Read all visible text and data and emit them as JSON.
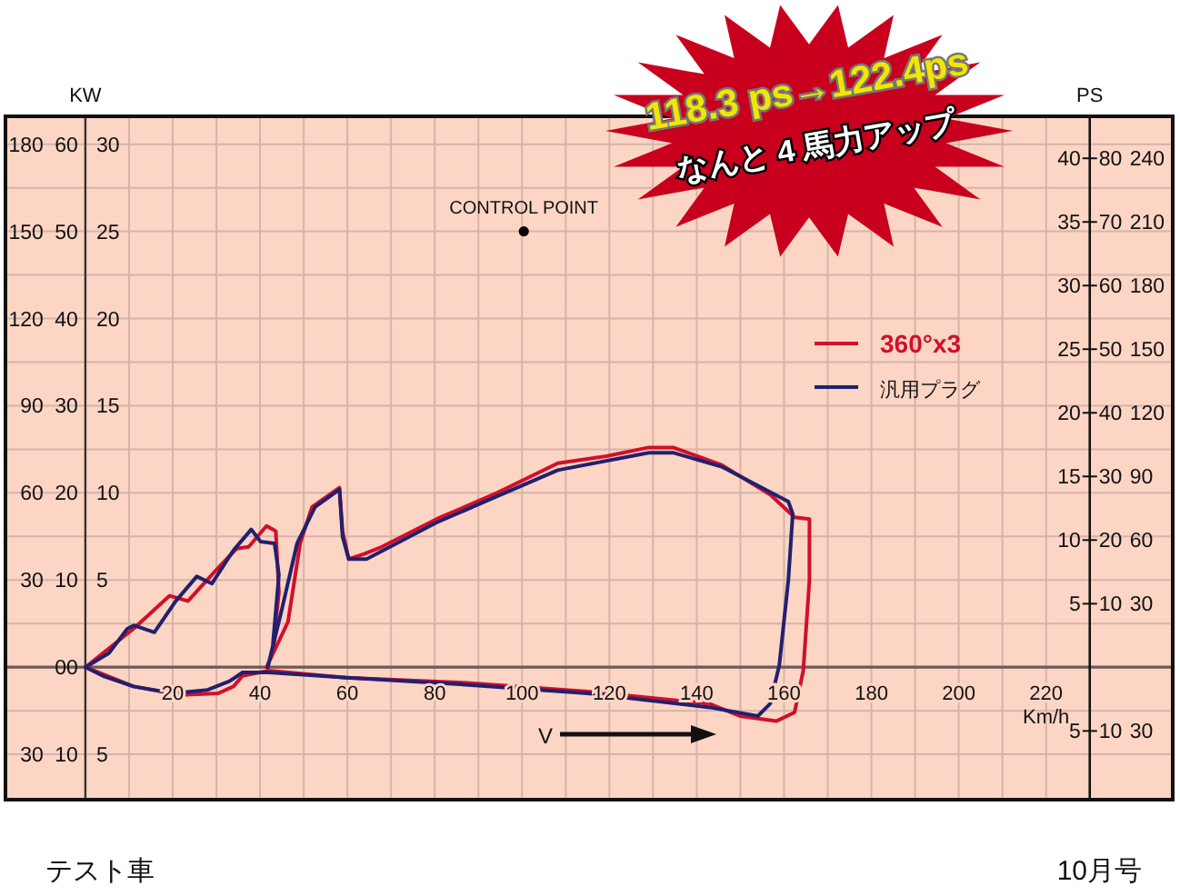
{
  "chart_data": {
    "type": "line",
    "ylabel": "KW",
    "y2label": "PS",
    "xlabel": "Km/h",
    "xlim": [
      -18.3,
      249
    ],
    "xticks": [
      {
        "value": 10,
        "label": null
      },
      20,
      {
        "value": 30,
        "label": null
      },
      40,
      {
        "value": 50,
        "label": null
      },
      60,
      {
        "value": 70,
        "label": null
      },
      80,
      {
        "value": 90,
        "label": null
      },
      100,
      {
        "value": 110,
        "label": null
      },
      120,
      {
        "value": 130,
        "label": null
      },
      140,
      {
        "value": 150,
        "label": null
      },
      160,
      {
        "value": 170,
        "label": null
      },
      180,
      {
        "value": 190,
        "label": null
      },
      200,
      {
        "value": 210,
        "label": null
      },
      220
    ],
    "ylim": [
      -7.6,
      31.6
    ],
    "yticks": [
      {
        "value": -5,
        "label": "5"
      },
      {
        "value": -2.5,
        "label": null
      },
      {
        "value": 0,
        "label": null
      },
      {
        "value": 2.5,
        "label": null
      },
      5,
      {
        "value": 7.5,
        "label": null
      },
      10,
      {
        "value": 12.5,
        "label": null
      },
      15,
      {
        "value": 17.5,
        "label": null
      },
      20,
      {
        "value": 22.5,
        "label": null
      },
      25,
      {
        "value": 27.5,
        "label": null
      },
      30
    ],
    "y3lim": [
      -15.2,
      63.2
    ],
    "y3ticks": [
      {
        "value": -10,
        "label": "10"
      },
      {
        "value": 0,
        "label": "00"
      },
      10,
      20,
      30,
      40,
      50,
      60
    ],
    "y2lim": [
      -10.4,
      43.3
    ],
    "y2ticks": [
      {
        "value": -5,
        "label": "5"
      },
      5,
      10,
      15,
      20,
      25,
      30,
      35,
      40
    ],
    "grid": true,
    "legend": "right",
    "line_style": "solid",
    "series": [
      {
        "name": "360°x3",
        "color": "#d0102a",
        "x": [
          0,
          4,
          11,
          19.3,
          23.5,
          30.4,
          34.6,
          37.4,
          41.5,
          43.6,
          44.3,
          42.9,
          41.5,
          46.4,
          49.2,
          51.9,
          58.2,
          58.9,
          60.3,
          63.8,
          67.9,
          80.4,
          94.3,
          108.2,
          119.3,
          129,
          134.6,
          145.7,
          156.8,
          162.4,
          165.8,
          165.8,
          164.4,
          162.4,
          158.2,
          149.9,
          142.9,
          115.1,
          87.4,
          59.6,
          42,
          36,
          33.9,
          30.4,
          22.1,
          11,
          4,
          0
        ],
        "values": [
          0,
          0.8,
          2.2,
          4.1,
          3.8,
          5.7,
          6.8,
          6.9,
          8.1,
          7.8,
          4.3,
          0.8,
          0,
          2.6,
          7.1,
          9.2,
          10.3,
          7.8,
          6.2,
          6.5,
          6.9,
          8.5,
          10.0,
          11.7,
          12.1,
          12.6,
          12.6,
          11.6,
          9.9,
          8.6,
          8.5,
          5.0,
          -0.2,
          -2.6,
          -3.1,
          -2.8,
          -2.1,
          -1.4,
          -0.9,
          -0.6,
          -0.2,
          -0.5,
          -1.1,
          -1.5,
          -1.6,
          -1.1,
          -0.4,
          0
        ]
      },
      {
        "name": "汎用プラグ",
        "color": "#22206e",
        "x": [
          0,
          5.4,
          9.6,
          11.1,
          15.8,
          20.7,
          25.5,
          29,
          33.9,
          38,
          40.1,
          43.3,
          44.3,
          42.9,
          41.8,
          45,
          48.5,
          52.6,
          58.2,
          58.9,
          60.3,
          64.4,
          80.4,
          94.3,
          108.2,
          129,
          134.6,
          145.7,
          161,
          162,
          161,
          158.9,
          156.8,
          154,
          142.9,
          115,
          87,
          60,
          42,
          36,
          33,
          28,
          20,
          11,
          4,
          0
        ],
        "values": [
          0,
          0.8,
          2.2,
          2.4,
          2.0,
          3.8,
          5.2,
          4.8,
          6.7,
          7.9,
          7.2,
          7.1,
          5.3,
          1.2,
          0,
          3.3,
          7.1,
          9.2,
          10.2,
          7.5,
          6.2,
          6.2,
          8.3,
          9.8,
          11.3,
          12.3,
          12.3,
          11.5,
          9.5,
          8.8,
          5.0,
          0.1,
          -2.1,
          -2.8,
          -2.3,
          -1.5,
          -1.0,
          -0.6,
          -0.3,
          -0.3,
          -0.8,
          -1.3,
          -1.5,
          -1.1,
          -0.5,
          0
        ]
      },
      {
        "type": "scatter",
        "marker": "circle",
        "color": "#000000",
        "x": [
          100.4
        ],
        "values": [
          25.0
        ]
      }
    ],
    "annotations": [
      "118.3 ps→122.4ps",
      "なんと 4 馬力アップ",
      "テスト車",
      "10月号",
      "V",
      {
        "text": "CONTROL POINT",
        "x": 100.4,
        "y": 25.0
      },
      "180",
      "150",
      "120",
      "90",
      "60",
      "30",
      "30",
      "80",
      "70",
      "60",
      "50",
      "40",
      "30",
      "20",
      "10",
      "10",
      "240",
      "210",
      "180",
      "150",
      "120",
      "90",
      "60",
      "30",
      "30"
    ]
  }
}
